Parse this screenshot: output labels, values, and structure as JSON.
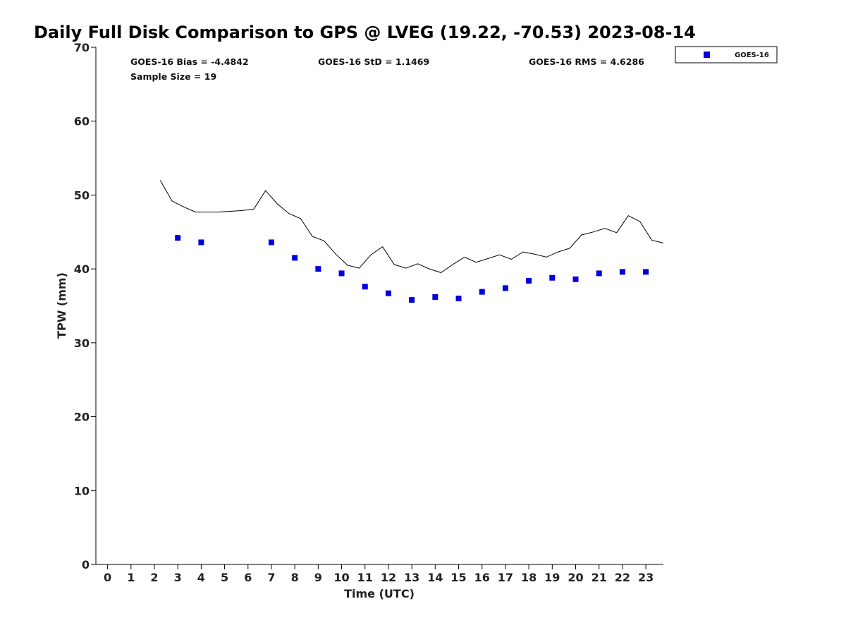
{
  "chart_data": {
    "type": "scatter",
    "title": "Daily Full Disk Comparison to GPS @ LVEG (19.22, -70.53) 2023-08-14",
    "xlabel": "Time (UTC)",
    "ylabel": "TPW (mm)",
    "xlim": [
      -0.5,
      23.75
    ],
    "ylim": [
      0,
      70
    ],
    "xticks": [
      0,
      1,
      2,
      3,
      4,
      5,
      6,
      7,
      8,
      9,
      10,
      11,
      12,
      13,
      14,
      15,
      16,
      17,
      18,
      19,
      20,
      21,
      22,
      23
    ],
    "yticks": [
      0,
      10,
      20,
      30,
      40,
      50,
      60,
      70
    ],
    "grid": false,
    "legend_position": "top-right, outside plot area",
    "stats": {
      "bias": "GOES-16 Bias = -4.4842",
      "std": "GOES-16 StD = 1.1469",
      "rms": "GOES-16 RMS = 4.6286",
      "sample": "Sample Size = 19"
    },
    "series": [
      {
        "name": "GOES-16",
        "marker": "square",
        "color": "#0000dd",
        "x": [
          3,
          4,
          7,
          8,
          9,
          10,
          11,
          12,
          13,
          14,
          15,
          16,
          17,
          18,
          19,
          20,
          21,
          22,
          23
        ],
        "y": [
          44.2,
          43.6,
          43.6,
          41.5,
          40.0,
          39.4,
          37.6,
          36.7,
          35.8,
          36.2,
          36.0,
          36.9,
          37.4,
          38.4,
          38.8,
          38.6,
          39.4,
          39.6,
          39.6
        ]
      },
      {
        "marker": "line",
        "color": "#000000",
        "x": [
          2.25,
          2.75,
          3.25,
          3.75,
          4.25,
          4.75,
          5.25,
          5.75,
          6.25,
          6.75,
          7.25,
          7.75,
          8.25,
          8.75,
          9.25,
          9.75,
          10.25,
          10.75,
          11.25,
          11.75,
          12.25,
          12.75,
          13.25,
          13.75,
          14.25,
          14.75,
          15.25,
          15.75,
          16.25,
          16.75,
          17.25,
          17.75,
          18.25,
          18.75,
          19.25,
          19.75,
          20.25,
          20.75,
          21.25,
          21.75,
          22.25,
          22.75,
          23.25,
          23.75
        ],
        "y": [
          52.0,
          49.2,
          48.4,
          47.7,
          47.7,
          47.7,
          47.8,
          47.9,
          48.1,
          50.6,
          48.8,
          47.5,
          46.8,
          44.4,
          43.8,
          42.0,
          40.5,
          40.1,
          41.9,
          43.0,
          40.6,
          40.1,
          40.7,
          40.0,
          39.5,
          40.6,
          41.6,
          40.9,
          41.4,
          41.9,
          41.3,
          42.3,
          42.0,
          41.6,
          42.3,
          42.8,
          44.6,
          45.0,
          45.5,
          44.9,
          47.2,
          46.4,
          43.9,
          43.5
        ]
      }
    ]
  }
}
